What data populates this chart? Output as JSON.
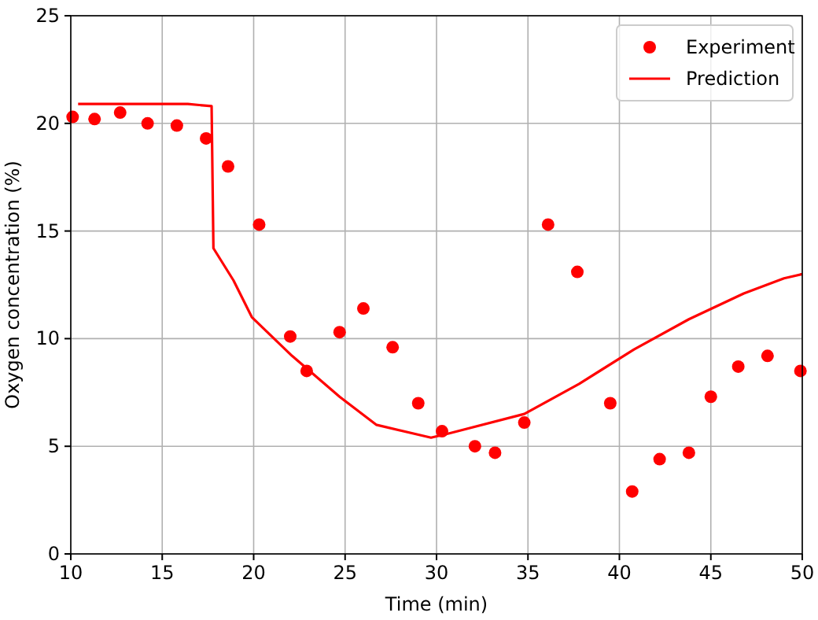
{
  "chart_data": {
    "type": "line",
    "xlabel": "Time (min)",
    "ylabel": "Oxygen concentration (%)",
    "xlim": [
      10,
      50
    ],
    "xticks": [
      10,
      15,
      20,
      25,
      30,
      35,
      40,
      45,
      50
    ],
    "ylim": [
      0,
      25
    ],
    "yticks": [
      0,
      5,
      10,
      15,
      20,
      25
    ],
    "grid": true,
    "legend": "top right",
    "series": [
      {
        "name": "Experiment",
        "type": "scatter",
        "marker": "circle",
        "color": "#ff0000",
        "x": [
          10.1,
          11.3,
          12.7,
          14.2,
          15.8,
          17.4,
          18.6,
          20.3,
          22.0,
          22.9,
          24.7,
          26.0,
          27.6,
          29.0,
          30.3,
          32.1,
          33.2,
          34.8,
          36.1,
          37.7,
          39.5,
          40.7,
          42.2,
          43.8,
          45.0,
          46.5,
          48.1,
          49.9
        ],
        "values": [
          20.3,
          20.2,
          20.5,
          20.0,
          19.9,
          19.3,
          18.0,
          15.3,
          10.1,
          8.5,
          10.3,
          11.4,
          9.6,
          7.0,
          5.7,
          5.0,
          4.7,
          6.1,
          15.3,
          13.1,
          7.0,
          2.9,
          4.4,
          4.7,
          7.3,
          8.7,
          9.2,
          8.5
        ]
      },
      {
        "name": "Prediction",
        "color": "#ff0000",
        "x": [
          10.4,
          16.4,
          17.7,
          17.8,
          18.9,
          19.9,
          22.1,
          24.7,
          26.7,
          29.7,
          30.7,
          34.8,
          37.8,
          40.8,
          43.8,
          46.8,
          49.0,
          50
        ],
        "values": [
          20.9,
          20.9,
          20.8,
          14.2,
          12.7,
          11.0,
          9.2,
          7.3,
          6.0,
          5.4,
          5.6,
          6.5,
          7.9,
          9.5,
          10.9,
          12.1,
          12.8,
          13.0
        ]
      }
    ]
  }
}
